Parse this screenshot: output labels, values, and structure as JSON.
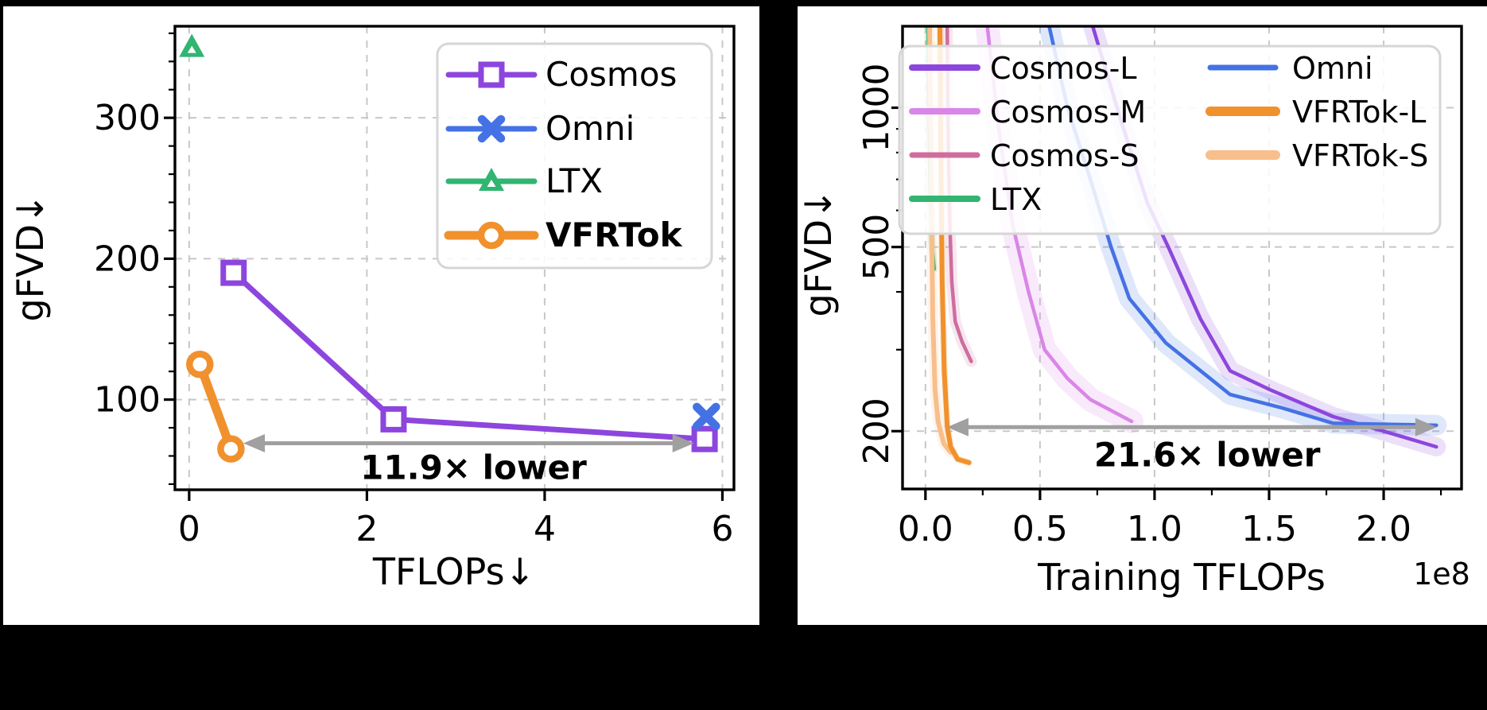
{
  "figure": {
    "background": "#000000",
    "panel_background": "#ffffff",
    "grid_color": "#c8c8c8",
    "spine_color": "#000000",
    "annotation_gray": "#a0a0a0"
  },
  "chart_data": [
    {
      "id": "left",
      "type": "line",
      "xlabel": "TFLOPs↓",
      "ylabel": "gFVD↓",
      "xlim": [
        -0.16,
        6.13
      ],
      "ylim": [
        36,
        365
      ],
      "yscale": "linear",
      "grid": true,
      "legend_position": "top-right",
      "xticks": {
        "values": [
          0,
          2,
          4,
          6
        ],
        "labels": [
          "0",
          "2",
          "4",
          "6"
        ]
      },
      "yticks": {
        "values": [
          100,
          200,
          300
        ],
        "labels": [
          "100",
          "200",
          "300"
        ]
      },
      "yminor_step": 20,
      "series": [
        {
          "name": "Cosmos",
          "color": "#8d46dd",
          "marker": "square",
          "lw": 7,
          "z": 1,
          "x": [
            0.5,
            2.3,
            5.8
          ],
          "y": [
            190,
            86,
            72
          ]
        },
        {
          "name": "Omni",
          "color": "#4472e4",
          "marker": "x",
          "lw": 7,
          "z": 3,
          "x": [
            5.82
          ],
          "y": [
            88
          ]
        },
        {
          "name": "LTX",
          "color": "#31b571",
          "marker": "triangle",
          "lw": 7,
          "z": 2,
          "x": [
            0.03
          ],
          "y": [
            350
          ]
        },
        {
          "name": "VFRTok",
          "color": "#f0912d",
          "marker": "circle",
          "lw": 11,
          "z": 4,
          "legend_bold": true,
          "x": [
            0.12,
            0.47
          ],
          "y": [
            125,
            65
          ]
        }
      ],
      "annotation": {
        "text": "11.9× lower",
        "y": 69,
        "x_start": 0.61,
        "x_end": 5.68,
        "label_x": 3.2,
        "label_y": 52,
        "color": "#a0a0a0"
      }
    },
    {
      "id": "right",
      "type": "line",
      "xlabel": "Training TFLOPs",
      "ylabel": "gFVD↓",
      "x_offset_text": "1e8",
      "xlim": [
        -0.1,
        2.34
      ],
      "ylim": [
        150,
        1500
      ],
      "yscale": "log",
      "grid": true,
      "legend_position": "top",
      "legend_columns": 2,
      "xticks": {
        "values": [
          0.0,
          0.5,
          1.0,
          1.5,
          2.0
        ],
        "labels": [
          "0.0",
          "0.5",
          "1.0",
          "1.5",
          "2.0"
        ]
      },
      "xminors": [
        0.25,
        0.75,
        1.25,
        1.75,
        2.25
      ],
      "yticks": {
        "values": [
          200,
          500,
          1000
        ],
        "labels": [
          "200",
          "500",
          "1000"
        ],
        "rotation": 90
      },
      "yminors": [
        300,
        400,
        600,
        700,
        800,
        900
      ],
      "series": [
        {
          "name": "Cosmos-L",
          "color": "#8d46dd",
          "lw": 4.5,
          "legend_lw": 8,
          "band": 24,
          "z": 4,
          "x": [
            0.73,
            0.85,
            0.97,
            1.06,
            1.2,
            1.33,
            1.51,
            1.78,
            2.0,
            2.23
          ],
          "y": [
            1500,
            950,
            620,
            500,
            350,
            270,
            245,
            215,
            200,
            185
          ]
        },
        {
          "name": "Cosmos-M",
          "color": "#da85e8",
          "lw": 4.5,
          "legend_lw": 8,
          "band": 30,
          "z": 3,
          "x": [
            0.27,
            0.32,
            0.38,
            0.45,
            0.52,
            0.62,
            0.72,
            0.9
          ],
          "y": [
            1500,
            900,
            560,
            400,
            300,
            260,
            234,
            210
          ]
        },
        {
          "name": "Cosmos-S",
          "color": "#cf6d9f",
          "lw": 4.5,
          "legend_lw": 7,
          "band": 14,
          "z": 2,
          "x": [
            0.095,
            0.1,
            0.107,
            0.115,
            0.13,
            0.16,
            0.2
          ],
          "y": [
            1500,
            800,
            550,
            420,
            345,
            312,
            283
          ]
        },
        {
          "name": "LTX",
          "color": "#31b571",
          "lw": 4.5,
          "legend_lw": 8,
          "band": 9,
          "z": 1,
          "x": [
            0.012,
            0.016,
            0.021,
            0.028,
            0.038
          ],
          "y": [
            1500,
            950,
            650,
            510,
            448
          ]
        },
        {
          "name": "Omni",
          "color": "#4472e4",
          "lw": 4.5,
          "legend_lw": 7,
          "band": 26,
          "z": 5,
          "x": [
            0.54,
            0.62,
            0.72,
            0.81,
            0.89,
            1.05,
            1.33,
            1.55,
            1.78,
            2.0,
            2.23
          ],
          "y": [
            1500,
            1000,
            700,
            500,
            387,
            310,
            240,
            225,
            208,
            207,
            206
          ]
        },
        {
          "name": "VFRTok-L",
          "color": "#f0912d",
          "lw": 6,
          "legend_lw": 12,
          "band": 9,
          "z": 7,
          "x": [
            0.063,
            0.068,
            0.073,
            0.082,
            0.095,
            0.11,
            0.14,
            0.19
          ],
          "y": [
            1500,
            700,
            420,
            270,
            205,
            185,
            174,
            171
          ]
        },
        {
          "name": "VFRTok-S",
          "color": "#f8be8b",
          "lw": 6,
          "legend_lw": 12,
          "band": 13,
          "z": 6,
          "x": [
            0.018,
            0.024,
            0.032,
            0.042,
            0.055,
            0.08,
            0.11
          ],
          "y": [
            1500,
            800,
            350,
            245,
            210,
            188,
            180
          ]
        }
      ],
      "annotation": {
        "text": "21.6× lower",
        "y": 204,
        "x_start": 0.094,
        "x_end": 2.232,
        "label_x": 1.23,
        "label_y": 178,
        "color": "#a0a0a0"
      }
    }
  ]
}
